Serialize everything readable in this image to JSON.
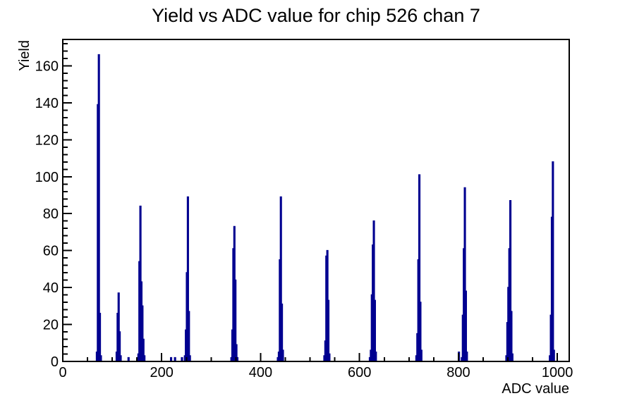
{
  "chart_data": {
    "type": "bar",
    "style": "root-step-histogram",
    "title": "Yield vs ADC value for chip 526 chan 7",
    "xlabel": "ADC value",
    "ylabel": "Yield",
    "xlim": [
      0,
      1024
    ],
    "ylim": [
      0,
      174.3
    ],
    "x_major_ticks": [
      0,
      200,
      400,
      600,
      800,
      1000
    ],
    "x_minor_step": 50,
    "y_major_ticks": [
      0,
      20,
      40,
      60,
      80,
      100,
      120,
      140,
      160
    ],
    "y_minor_step": 4,
    "grid": false,
    "legend": "none",
    "bin_width": 2,
    "line_color": "#000090",
    "axis_color": "#000000",
    "background": "#ffffff",
    "bins": [
      [
        68,
        5
      ],
      [
        70,
        139
      ],
      [
        72,
        166
      ],
      [
        74,
        26
      ],
      [
        76,
        3
      ],
      [
        108,
        5
      ],
      [
        110,
        26
      ],
      [
        112,
        37
      ],
      [
        114,
        16
      ],
      [
        116,
        3
      ],
      [
        132,
        2
      ],
      [
        152,
        4
      ],
      [
        154,
        54
      ],
      [
        156,
        84
      ],
      [
        158,
        43
      ],
      [
        160,
        30
      ],
      [
        162,
        12
      ],
      [
        164,
        3
      ],
      [
        218,
        2
      ],
      [
        226,
        2
      ],
      [
        240,
        2
      ],
      [
        246,
        3
      ],
      [
        248,
        17
      ],
      [
        250,
        48
      ],
      [
        252,
        89
      ],
      [
        254,
        27
      ],
      [
        256,
        3
      ],
      [
        340,
        2
      ],
      [
        342,
        17
      ],
      [
        344,
        61
      ],
      [
        346,
        73
      ],
      [
        348,
        44
      ],
      [
        350,
        9
      ],
      [
        352,
        2
      ],
      [
        434,
        2
      ],
      [
        436,
        5
      ],
      [
        438,
        55
      ],
      [
        440,
        89
      ],
      [
        442,
        31
      ],
      [
        444,
        6
      ],
      [
        528,
        3
      ],
      [
        530,
        11
      ],
      [
        532,
        57
      ],
      [
        534,
        60
      ],
      [
        536,
        33
      ],
      [
        538,
        4
      ],
      [
        620,
        2
      ],
      [
        622,
        6
      ],
      [
        624,
        36
      ],
      [
        626,
        63
      ],
      [
        628,
        76
      ],
      [
        630,
        33
      ],
      [
        632,
        5
      ],
      [
        714,
        3
      ],
      [
        716,
        15
      ],
      [
        718,
        55
      ],
      [
        720,
        101
      ],
      [
        722,
        32
      ],
      [
        724,
        6
      ],
      [
        800,
        5
      ],
      [
        806,
        2
      ],
      [
        808,
        25
      ],
      [
        810,
        61
      ],
      [
        812,
        94
      ],
      [
        814,
        38
      ],
      [
        816,
        5
      ],
      [
        896,
        3
      ],
      [
        898,
        21
      ],
      [
        900,
        40
      ],
      [
        902,
        61
      ],
      [
        904,
        87
      ],
      [
        906,
        27
      ],
      [
        908,
        4
      ],
      [
        984,
        3
      ],
      [
        986,
        25
      ],
      [
        988,
        78
      ],
      [
        990,
        108
      ],
      [
        992,
        6
      ]
    ]
  }
}
